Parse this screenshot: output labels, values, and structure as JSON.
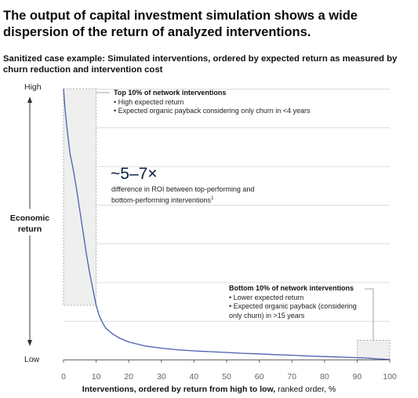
{
  "title": "The output of capital investment simulation shows a wide dispersion of the return of analyzed interventions.",
  "subtitle": "Sanitized case example: Simulated interventions, ordered by expected return as measured by churn reduction and intervention cost",
  "y_axis": {
    "high_label": "High",
    "low_label": "Low",
    "title": "Economic return"
  },
  "x_axis": {
    "title_bold": "Interventions, ordered by return from high to low,",
    "title_rest": " ranked order, %"
  },
  "top_annotation": {
    "heading": "Top 10% of network interventions",
    "bullets": [
      "High expected return",
      "Expected organic payback considering only churn in <4 years"
    ]
  },
  "bottom_annotation": {
    "heading": "Bottom 10% of network interventions",
    "bullets": [
      "Lower expected return",
      "Expected organic payback (considering only churn) in >15 years"
    ]
  },
  "roi_callout": {
    "value": "~5–7×",
    "description": "difference in ROI between top-performing and bottom-performing interventions",
    "footnote": "1"
  },
  "colors": {
    "line": "#4a5fb0",
    "highlight_fill": "#efefef",
    "highlight_stroke": "#9a9a9a",
    "grid": "#dddddd"
  },
  "chart_data": {
    "type": "line",
    "xlim": [
      0,
      100
    ],
    "ylim": [
      0,
      100
    ],
    "xticks": [
      0,
      10,
      20,
      30,
      40,
      50,
      60,
      70,
      80,
      90,
      100
    ],
    "grid": true,
    "highlight_ranges": [
      [
        0,
        10
      ],
      [
        90,
        100
      ]
    ],
    "series": [
      {
        "x": [
          0,
          0.5,
          1,
          1.5,
          2,
          3,
          4,
          5,
          6,
          7,
          8,
          9,
          10,
          11,
          12,
          13,
          15,
          17,
          20,
          25,
          30,
          35,
          40,
          45,
          50,
          55,
          60,
          65,
          70,
          75,
          80,
          85,
          90,
          92,
          94,
          96,
          98,
          100
        ],
        "y": [
          100,
          92,
          86,
          81,
          76,
          70,
          63,
          55,
          47,
          39,
          32,
          26,
          20,
          16,
          13.5,
          11.5,
          9.5,
          8,
          6.5,
          5,
          4.2,
          3.6,
          3.2,
          2.9,
          2.6,
          2.3,
          2.1,
          1.8,
          1.6,
          1.3,
          1.1,
          0.9,
          0.7,
          0.6,
          0.45,
          0.3,
          0.15,
          0
        ]
      }
    ]
  }
}
